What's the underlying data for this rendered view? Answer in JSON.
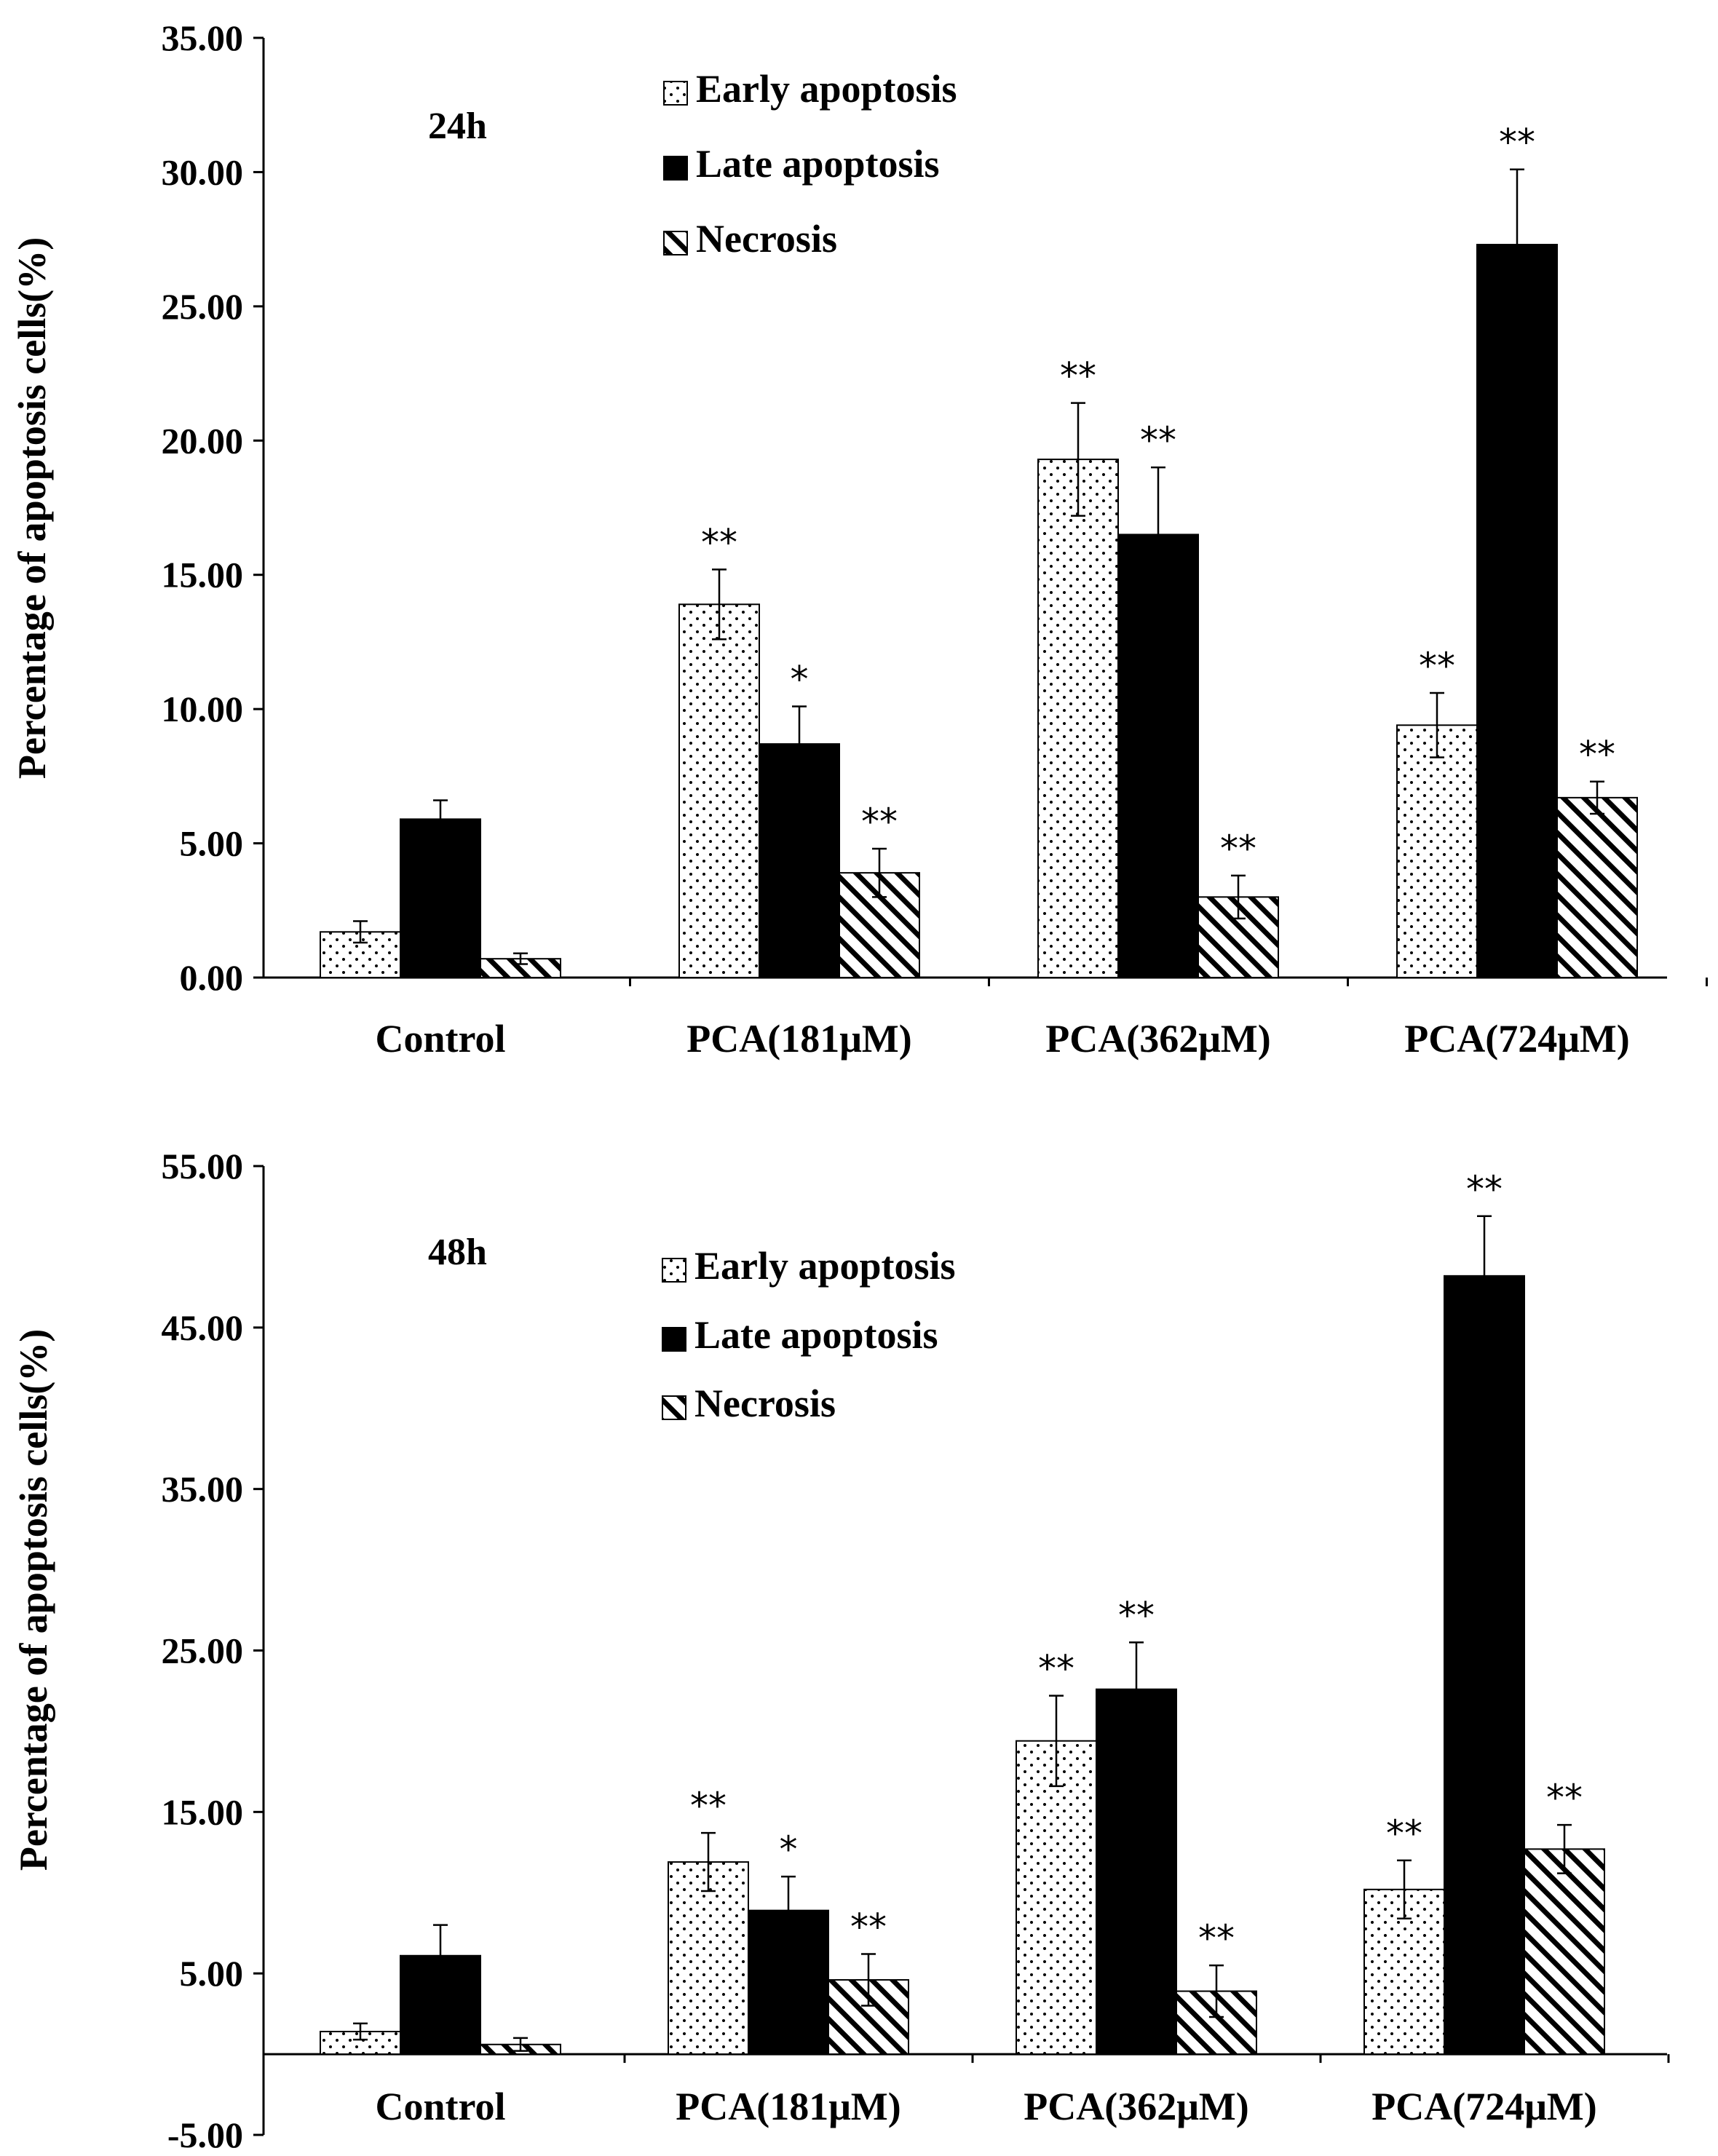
{
  "chart_data": [
    {
      "type": "bar",
      "panel_label": "24h",
      "ylabel": "Percentage of apoptosis cells(%)",
      "xlabel": "",
      "ylim": [
        0,
        35
      ],
      "yticks": [
        "0.00",
        "5.00",
        "10.00",
        "15.00",
        "20.00",
        "25.00",
        "30.00",
        "35.00"
      ],
      "categories": [
        "Control",
        "PCA(181μM)",
        "PCA(362μM)",
        "PCA(724μM)"
      ],
      "legend_position": "top-center",
      "series": [
        {
          "name": "Early apoptosis",
          "pattern": "dots",
          "values": [
            1.7,
            13.9,
            19.3,
            9.4
          ],
          "errors": [
            0.4,
            1.3,
            2.1,
            1.2
          ],
          "significance": [
            "",
            "**",
            "**",
            "**"
          ]
        },
        {
          "name": "Late apoptosis",
          "pattern": "solid",
          "values": [
            5.9,
            8.7,
            16.5,
            27.3
          ],
          "errors": [
            0.7,
            1.4,
            2.5,
            2.8
          ],
          "significance": [
            "",
            "*",
            "**",
            "**"
          ]
        },
        {
          "name": "Necrosis",
          "pattern": "hatch",
          "values": [
            0.7,
            3.9,
            3.0,
            6.7
          ],
          "errors": [
            0.2,
            0.9,
            0.8,
            0.6
          ],
          "significance": [
            "",
            "**",
            "**",
            "**"
          ]
        }
      ]
    },
    {
      "type": "bar",
      "panel_label": "48h",
      "ylabel": "Percentage of apoptosis cells(%)",
      "xlabel": "",
      "ylim": [
        -5,
        55
      ],
      "yticks": [
        "-5.00",
        "5.00",
        "15.00",
        "25.00",
        "35.00",
        "45.00",
        "55.00"
      ],
      "categories": [
        "Control",
        "PCA(181μM)",
        "PCA(362μM)",
        "PCA(724μM)"
      ],
      "legend_position": "top-center",
      "series": [
        {
          "name": "Early apoptosis",
          "pattern": "dots",
          "values": [
            1.4,
            11.9,
            19.4,
            10.2
          ],
          "errors": [
            0.5,
            1.8,
            2.8,
            1.8
          ],
          "significance": [
            "",
            "**",
            "**",
            "**"
          ]
        },
        {
          "name": "Late apoptosis",
          "pattern": "solid",
          "values": [
            6.1,
            8.9,
            22.6,
            48.2
          ],
          "errors": [
            1.9,
            2.1,
            2.9,
            3.7
          ],
          "significance": [
            "",
            "*",
            "**",
            "**"
          ]
        },
        {
          "name": "Necrosis",
          "pattern": "hatch",
          "values": [
            0.6,
            4.6,
            3.9,
            12.7
          ],
          "errors": [
            0.4,
            1.6,
            1.6,
            1.5
          ],
          "significance": [
            "",
            "**",
            "**",
            "**"
          ]
        }
      ]
    }
  ]
}
